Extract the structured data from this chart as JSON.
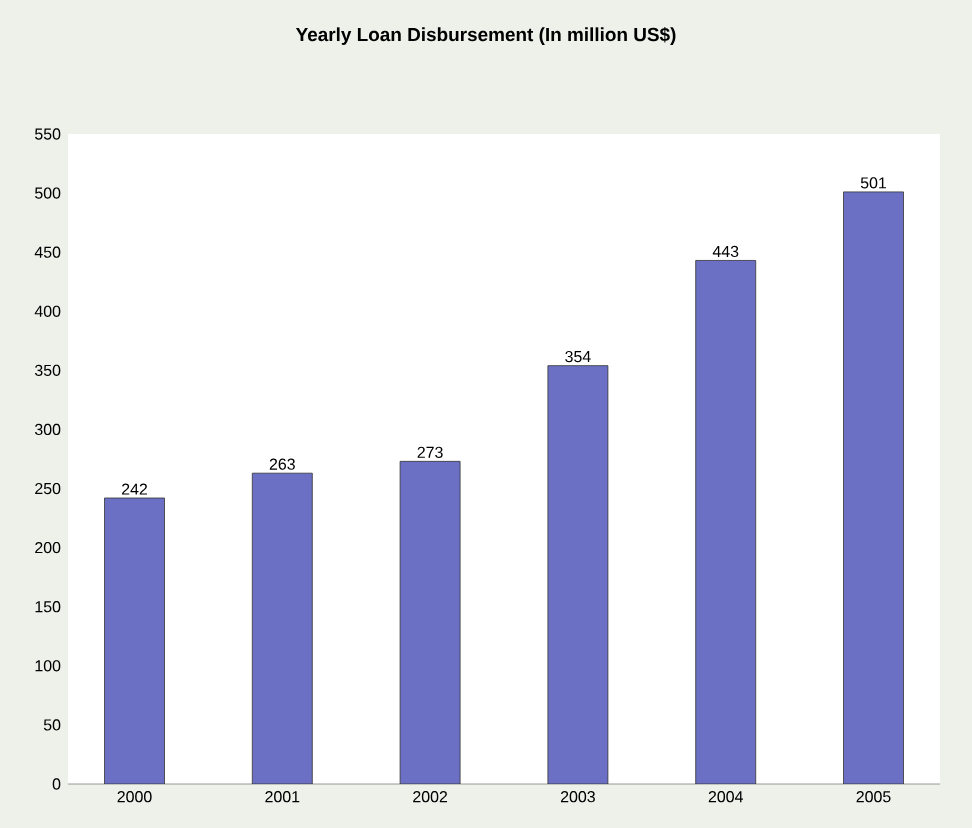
{
  "chart_data": {
    "type": "bar",
    "title": "Yearly Loan Disbursement (In million US$)",
    "categories": [
      "2000",
      "2001",
      "2002",
      "2003",
      "2004",
      "2005"
    ],
    "values": [
      242,
      263,
      273,
      354,
      443,
      501
    ],
    "color": "#6b70c4",
    "ylim": [
      0,
      550
    ],
    "yticks": [
      0,
      50,
      100,
      150,
      200,
      250,
      300,
      350,
      400,
      450,
      500,
      550
    ],
    "data_labels": true,
    "grid": false
  }
}
